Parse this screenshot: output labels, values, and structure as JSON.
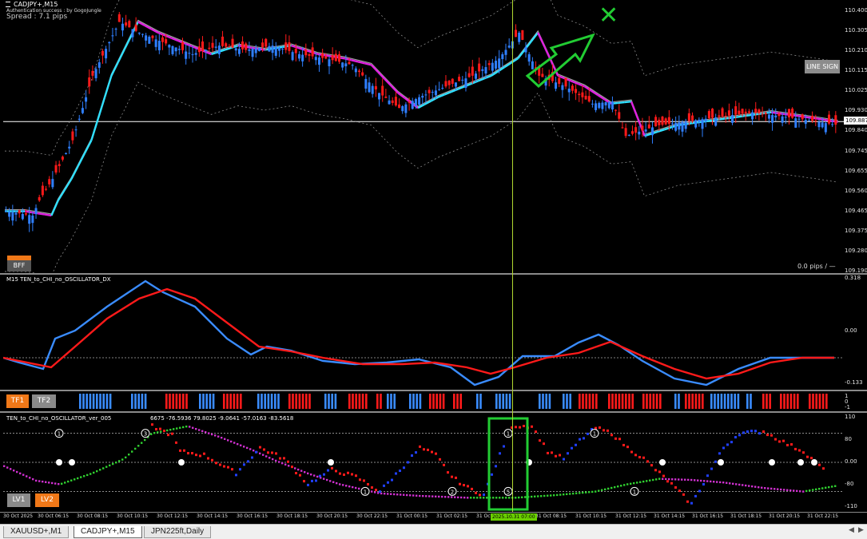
{
  "symbol_title": "CADJPY+,M15",
  "auth_text": "Authentication success : by GogoJungle",
  "spread_text": "Spread : 7.1 pips",
  "line_sign_label": "LINE SIGN",
  "bff_label": "BFF",
  "pips_text": "0.0 pips  /  —",
  "current_price": "109.887",
  "price_axis": [
    "110.400",
    "110.305",
    "110.210",
    "110.115",
    "110.025",
    "109.930",
    "109.840",
    "109.745",
    "109.655",
    "109.560",
    "109.465",
    "109.375",
    "109.280",
    "109.190"
  ],
  "osc1": {
    "title": "M15 TEN_to_CHI_no_OSCILLATOR_DX",
    "axis": [
      "0.318",
      "0.00",
      "-0.133"
    ]
  },
  "tf": {
    "tf1": "TF1",
    "tf2": "TF2",
    "axis": [
      "1",
      "0",
      "-1"
    ]
  },
  "osc2": {
    "title": "TEN_to_CHI_no_OSCILLATOR_ver_005",
    "values_text": "6675 -76.5936 79.8025 -9.0641 -57.0163 -83.5618",
    "axis": [
      "110",
      "80",
      "0.00",
      "-80",
      "-110"
    ],
    "lv1": "LV1",
    "lv2": "LV2"
  },
  "time_axis": [
    "30 Oct 2025",
    "30 Oct 06:15",
    "30 Oct 08:15",
    "30 Oct 10:15",
    "30 Oct 12:15",
    "30 Oct 14:15",
    "30 Oct 16:15",
    "30 Oct 18:15",
    "30 Oct 20:15",
    "30 Oct 22:15",
    "31 Oct 00:15",
    "31 Oct 02:15",
    "31 Oct 04:1",
    "31 Oct 08:15",
    "31 Oct 10:15",
    "31 Oct 12:15",
    "31 Oct 14:15",
    "31 Oct 16:15",
    "31 Oct 18:15",
    "31 Oct 20:15",
    "31 Oct 22:15"
  ],
  "cursor_time": "2025.10.31 07:00",
  "tabs": [
    "XAUUSD+,M1",
    "CADJPY+,M15",
    "JPN225ft,Daily"
  ],
  "colors": {
    "bull": "#2f7fff",
    "bear": "#ff1a1a",
    "ma_up": "#30e0ff",
    "ma_down": "#e020e0",
    "signal": "#22cc33",
    "osc_blue": "#3a8cff",
    "osc_red": "#ff1a1a"
  }
}
